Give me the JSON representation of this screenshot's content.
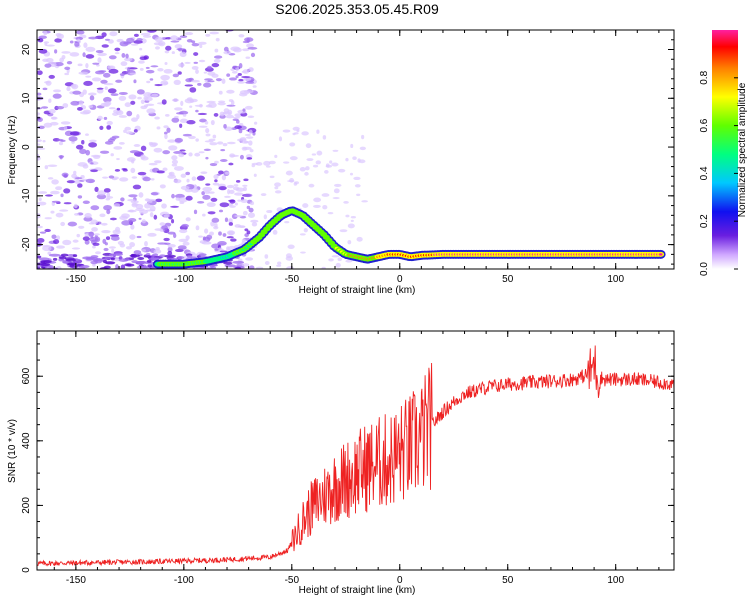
{
  "title": "S206.2025.353.05.45.R09",
  "colors": {
    "snr_line": "#ee2222",
    "spectrogram_scatter": "#7a3ee0",
    "ridge_low": "#2020d0",
    "ridge_high": "#ff2020"
  },
  "chart_data": [
    {
      "type": "heatmap",
      "title": "",
      "xlabel": "Height of straight line (km)",
      "ylabel": "Frequency (Hz)",
      "xlim": [
        -168,
        127
      ],
      "ylim": [
        -25,
        24
      ],
      "xticks": [
        -150,
        -100,
        -50,
        0,
        50,
        100
      ],
      "yticks": [
        -20,
        -10,
        0,
        10,
        20
      ],
      "colorbar": {
        "label": "Normalized spectral amplitude",
        "range": [
          0,
          1
        ],
        "ticks": [
          "0.0",
          "0.2",
          "0.4",
          "0.6",
          "0.8"
        ],
        "tick_values": [
          0.0,
          0.2,
          0.4,
          0.6,
          0.8
        ]
      },
      "ridge": {
        "x": [
          -112,
          -100,
          -90,
          -80,
          -72,
          -65,
          -60,
          -55,
          -50,
          -45,
          -40,
          -35,
          -30,
          -25,
          -20,
          -15,
          -10,
          -5,
          0,
          5,
          10,
          20,
          30,
          40,
          50,
          60,
          70,
          80,
          90,
          100,
          110,
          122
        ],
        "y": [
          -24,
          -24,
          -23.5,
          -22.5,
          -21,
          -18.5,
          -16,
          -14,
          -13,
          -14,
          -16,
          -18,
          -20.5,
          -22,
          -22.5,
          -23,
          -22.5,
          -22,
          -22,
          -22.5,
          -22.2,
          -22,
          -22,
          -22,
          -22,
          -22,
          -22,
          -22,
          -22,
          -22,
          -22,
          -22
        ],
        "amplitude": [
          0.4,
          0.45,
          0.4,
          0.35,
          0.45,
          0.5,
          0.55,
          0.55,
          0.5,
          0.5,
          0.55,
          0.5,
          0.6,
          0.7,
          0.8,
          0.75,
          0.8,
          0.85,
          0.9,
          0.85,
          0.9,
          0.95,
          0.95,
          0.95,
          0.95,
          0.95,
          0.95,
          0.95,
          0.95,
          0.95,
          0.95,
          0.95
        ]
      },
      "noise_region": {
        "x_from": -168,
        "x_to": -75
      }
    },
    {
      "type": "line",
      "title": "",
      "xlabel": "Height of straight line (km)",
      "ylabel": "SNR (10 * v/v)",
      "xlim": [
        -168,
        127
      ],
      "ylim": [
        0,
        740
      ],
      "xticks": [
        -150,
        -100,
        -50,
        0,
        50,
        100
      ],
      "yticks": [
        0,
        200,
        400,
        600
      ],
      "envelope": {
        "x": [
          -168,
          -150,
          -120,
          -100,
          -80,
          -60,
          -52,
          -48,
          -45,
          -40,
          -35,
          -30,
          -25,
          -20,
          -15,
          -10,
          -5,
          0,
          5,
          10,
          15,
          20,
          25,
          30,
          40,
          50,
          60,
          70,
          80,
          85,
          88,
          90,
          92,
          95,
          100,
          110,
          127
        ],
        "y": [
          20,
          22,
          25,
          28,
          32,
          40,
          60,
          110,
          150,
          200,
          230,
          260,
          280,
          300,
          320,
          330,
          340,
          360,
          380,
          410,
          450,
          490,
          520,
          545,
          565,
          575,
          580,
          585,
          590,
          600,
          610,
          640,
          600,
          590,
          590,
          590,
          575
        ]
      }
    }
  ]
}
